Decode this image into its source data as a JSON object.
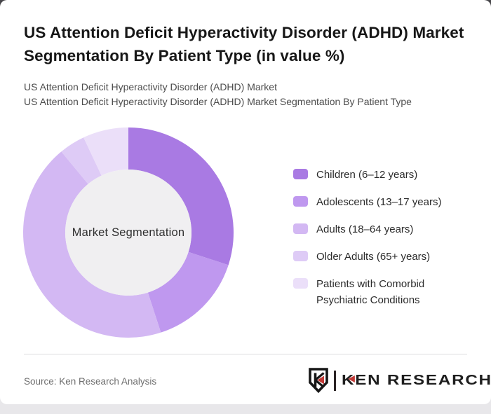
{
  "header": {
    "title": "US Attention Deficit Hyperactivity Disorder (ADHD) Market Segmentation By Patient Type (in value %)",
    "subtitle_line1": "US Attention Deficit Hyperactivity Disorder (ADHD) Market",
    "subtitle_line2": "US Attention Deficit Hyperactivity Disorder (ADHD) Market Segmentation By Patient Type"
  },
  "chart_data": {
    "type": "pie",
    "subtype": "donut",
    "title": "US Attention Deficit Hyperactivity Disorder (ADHD) Market Segmentation By Patient Type (in value %)",
    "center_label": "Market Segmentation",
    "unit": "%",
    "legend_position": "right",
    "start_angle_deg": 0,
    "direction": "clockwise",
    "hole_color": "#f0eff1",
    "segments": [
      {
        "label": "Children (6–12 years)",
        "value": 30,
        "color": "#a97ae3"
      },
      {
        "label": "Adolescents (13–17 years)",
        "value": 15,
        "color": "#bf98ef"
      },
      {
        "label": "Adults (18–64 years)",
        "value": 44,
        "color": "#d3b8f3"
      },
      {
        "label": "Older Adults (65+ years)",
        "value": 4,
        "color": "#decbf6"
      },
      {
        "label": "Patients with Comorbid Psychiatric Conditions",
        "value": 7,
        "color": "#ebdff9"
      }
    ]
  },
  "footer": {
    "source": "Source: Ken Research Analysis",
    "logo_k": "K",
    "logo_rest": "EN RESEARCH",
    "logo_accent_color": "#c23a37"
  }
}
